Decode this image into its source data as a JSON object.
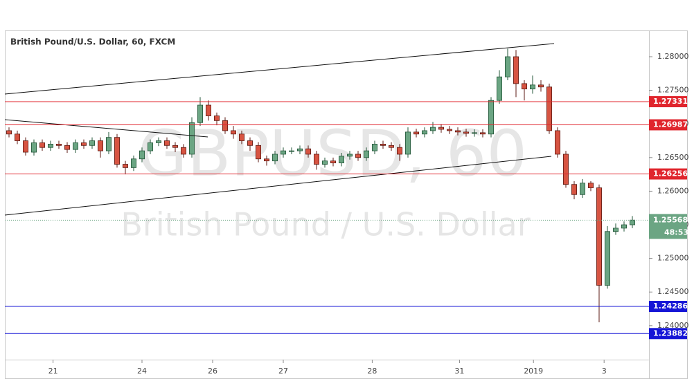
{
  "chart_data": {
    "type": "candlestick",
    "title": "British Pound/U.S. Dollar, 60, FXCM",
    "watermark": "GBPUSD, 60",
    "watermark_subtitle": "British Pound / U.S. Dollar",
    "up_color": "#6ba583",
    "down_color": "#d75442",
    "open": [
      1.269,
      1.2685,
      1.2675,
      1.2658,
      1.2672,
      1.2665,
      1.267,
      1.2668,
      1.2662,
      1.2672,
      1.2668,
      1.2675,
      1.266,
      1.268,
      1.264,
      1.2635,
      1.2648,
      1.266,
      1.2672,
      1.2675,
      1.2668,
      1.2665,
      1.2655,
      1.2702,
      1.2728,
      1.2712,
      1.2705,
      1.269,
      1.2685,
      1.2675,
      1.2668,
      1.2648,
      1.2645,
      1.2655,
      1.266,
      1.266,
      1.2663,
      1.2655,
      1.264,
      1.2645,
      1.2642,
      1.2652,
      1.2655,
      1.265,
      1.266,
      1.267,
      1.2668,
      1.2665,
      1.2655,
      1.2688,
      1.2685,
      1.269,
      1.2695,
      1.2692,
      1.269,
      1.2688,
      1.2686,
      1.2687,
      1.2685,
      1.2735,
      1.277,
      1.28,
      1.276,
      1.2752,
      1.2758,
      1.2755,
      1.269,
      1.2655,
      1.261,
      1.2595,
      1.2612,
      1.2605,
      1.246,
      1.254,
      1.2545,
      1.255
    ],
    "high": [
      1.2695,
      1.269,
      1.268,
      1.2677,
      1.2677,
      1.2675,
      1.2675,
      1.2673,
      1.2677,
      1.2677,
      1.268,
      1.268,
      1.2688,
      1.2685,
      1.2645,
      1.2653,
      1.2665,
      1.2677,
      1.268,
      1.268,
      1.2673,
      1.267,
      1.271,
      1.274,
      1.2735,
      1.2717,
      1.271,
      1.2697,
      1.269,
      1.268,
      1.2673,
      1.2653,
      1.266,
      1.2665,
      1.2665,
      1.2668,
      1.2668,
      1.266,
      1.265,
      1.265,
      1.2657,
      1.266,
      1.266,
      1.2665,
      1.2675,
      1.2675,
      1.2673,
      1.267,
      1.2695,
      1.2693,
      1.2695,
      1.2703,
      1.27,
      1.2697,
      1.2695,
      1.2693,
      1.2692,
      1.2692,
      1.274,
      1.278,
      1.2812,
      1.281,
      1.2765,
      1.2772,
      1.2765,
      1.276,
      1.2695,
      1.266,
      1.2615,
      1.2618,
      1.2615,
      1.261,
      1.2548,
      1.2552,
      1.2555,
      1.2563
    ],
    "low": [
      1.268,
      1.267,
      1.2653,
      1.2653,
      1.266,
      1.266,
      1.2663,
      1.2657,
      1.2657,
      1.2663,
      1.2663,
      1.265,
      1.2655,
      1.2635,
      1.2625,
      1.263,
      1.2643,
      1.2655,
      1.2667,
      1.2663,
      1.2658,
      1.265,
      1.265,
      1.2697,
      1.2705,
      1.2698,
      1.2685,
      1.2678,
      1.267,
      1.266,
      1.2643,
      1.2638,
      1.264,
      1.265,
      1.2655,
      1.2655,
      1.265,
      1.2632,
      1.2635,
      1.2637,
      1.2637,
      1.2647,
      1.2645,
      1.2645,
      1.2655,
      1.2663,
      1.266,
      1.2645,
      1.265,
      1.268,
      1.268,
      1.2685,
      1.2687,
      1.2685,
      1.2683,
      1.2681,
      1.2681,
      1.268,
      1.268,
      1.273,
      1.2765,
      1.274,
      1.2735,
      1.2745,
      1.2748,
      1.2685,
      1.265,
      1.2605,
      1.2588,
      1.259,
      1.26,
      1.2405,
      1.2455,
      1.2535,
      1.254,
      1.2545
    ],
    "close": [
      1.2685,
      1.2675,
      1.2658,
      1.2672,
      1.2665,
      1.267,
      1.2668,
      1.2662,
      1.2672,
      1.2668,
      1.2675,
      1.266,
      1.268,
      1.264,
      1.2635,
      1.2648,
      1.266,
      1.2672,
      1.2675,
      1.2668,
      1.2665,
      1.2655,
      1.2702,
      1.2728,
      1.2712,
      1.2705,
      1.269,
      1.2685,
      1.2675,
      1.2668,
      1.2648,
      1.2645,
      1.2655,
      1.266,
      1.266,
      1.2663,
      1.2655,
      1.264,
      1.2645,
      1.2642,
      1.2652,
      1.2655,
      1.265,
      1.266,
      1.267,
      1.2668,
      1.2665,
      1.2655,
      1.2688,
      1.2685,
      1.269,
      1.2695,
      1.2692,
      1.269,
      1.2688,
      1.2686,
      1.2687,
      1.2685,
      1.2735,
      1.277,
      1.28,
      1.276,
      1.2752,
      1.2758,
      1.2755,
      1.269,
      1.2655,
      1.261,
      1.2595,
      1.2612,
      1.2605,
      1.246,
      1.254,
      1.2545,
      1.255,
      1.2557
    ],
    "xlim": [
      -0.5,
      77
    ],
    "xticks": [
      {
        "value": 5.3,
        "label": "21"
      },
      {
        "value": 16,
        "label": "24"
      },
      {
        "value": 24.5,
        "label": "26"
      },
      {
        "value": 33,
        "label": "27"
      },
      {
        "value": 43.7,
        "label": "28"
      },
      {
        "value": 54.2,
        "label": "31"
      },
      {
        "value": 63.1,
        "label": "2019"
      },
      {
        "value": 71.6,
        "label": "3"
      }
    ],
    "ylim": [
      1.23772,
      1.28391
    ],
    "yticks": [
      {
        "value": 1.24,
        "label": "1.24000"
      },
      {
        "value": 1.245,
        "label": "1.24500"
      },
      {
        "value": 1.25,
        "label": "1.25000"
      },
      {
        "value": 1.255,
        "label": "1.25500"
      },
      {
        "value": 1.26,
        "label": "1.26000"
      },
      {
        "value": 1.265,
        "label": "1.26500"
      },
      {
        "value": 1.27,
        "label": "1.27000"
      },
      {
        "value": 1.275,
        "label": "1.27500"
      },
      {
        "value": 1.28,
        "label": "1.28000"
      }
    ],
    "levels": [
      {
        "value": 1.27331,
        "color": "#e0252d"
      },
      {
        "value": 1.26987,
        "color": "#e0252d"
      },
      {
        "value": 1.26256,
        "color": "#e0252d"
      },
      {
        "value": 1.24286,
        "color": "#1515d6"
      },
      {
        "value": 1.23882,
        "color": "#1515d6"
      }
    ],
    "last_price": 1.25568,
    "last_price_color": "#6ba583",
    "countdown": "48:53"
  }
}
